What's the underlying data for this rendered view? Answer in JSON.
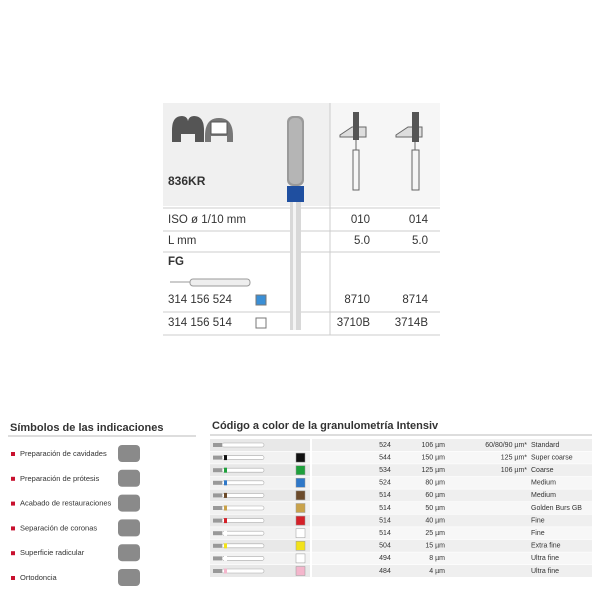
{
  "product": {
    "code": "836KR",
    "iso_label": "ISO ø 1/10 mm",
    "length_label": "L mm",
    "shank": "FG",
    "sizes": [
      "010",
      "014"
    ],
    "lengths": [
      "5.0",
      "5.0"
    ],
    "variants": [
      {
        "ref": "314 156 524",
        "color": "#3a8fd6",
        "items": [
          "8710",
          "8714"
        ]
      },
      {
        "ref": "314 156 514",
        "color": "#ffffff",
        "items": [
          "3710B",
          "3714B"
        ]
      }
    ]
  },
  "indications": {
    "title": "Símbolos de las indicaciones",
    "items": [
      "Preparación de cavidades",
      "Preparación de prótesis",
      "Acabado de restauraciones",
      "Separación de coronas",
      "Superficie radicular",
      "Ortodoncia"
    ]
  },
  "grit": {
    "title": "Código a color de la granulometría Intensiv",
    "rows": [
      {
        "code": "524",
        "size": "106 µm",
        "grit": "60/80/90 µm*",
        "name": "Standard"
      },
      {
        "code": "544",
        "size": "150 µm",
        "grit": "125 µm*",
        "name": "Super coarse",
        "color": "#111111"
      },
      {
        "code": "534",
        "size": "125 µm",
        "grit": "106 µm*",
        "name": "Coarse",
        "color": "#1fa03c"
      },
      {
        "code": "524",
        "size": "80 µm",
        "name": "Medium",
        "color": "#2f78c8"
      },
      {
        "code": "514",
        "size": "60 µm",
        "name": "Medium",
        "color": "#6b4a2a"
      },
      {
        "code": "514",
        "size": "50 µm",
        "name": "Golden Burs GB",
        "color": "#c9a24a"
      },
      {
        "code": "514",
        "size": "40 µm",
        "name": "Fine",
        "color": "#d42028"
      },
      {
        "code": "514",
        "size": "25 µm",
        "name": "Fine",
        "color": "#ffffff"
      },
      {
        "code": "504",
        "size": "15 µm",
        "name": "Extra fine",
        "color": "#f2e21a"
      },
      {
        "code": "494",
        "size": "8 µm",
        "name": "Ultra fine",
        "color": "#ffffff"
      },
      {
        "code": "484",
        "size": "4 µm",
        "name": "Ultra fine",
        "color": "#f4b6cc"
      }
    ]
  }
}
